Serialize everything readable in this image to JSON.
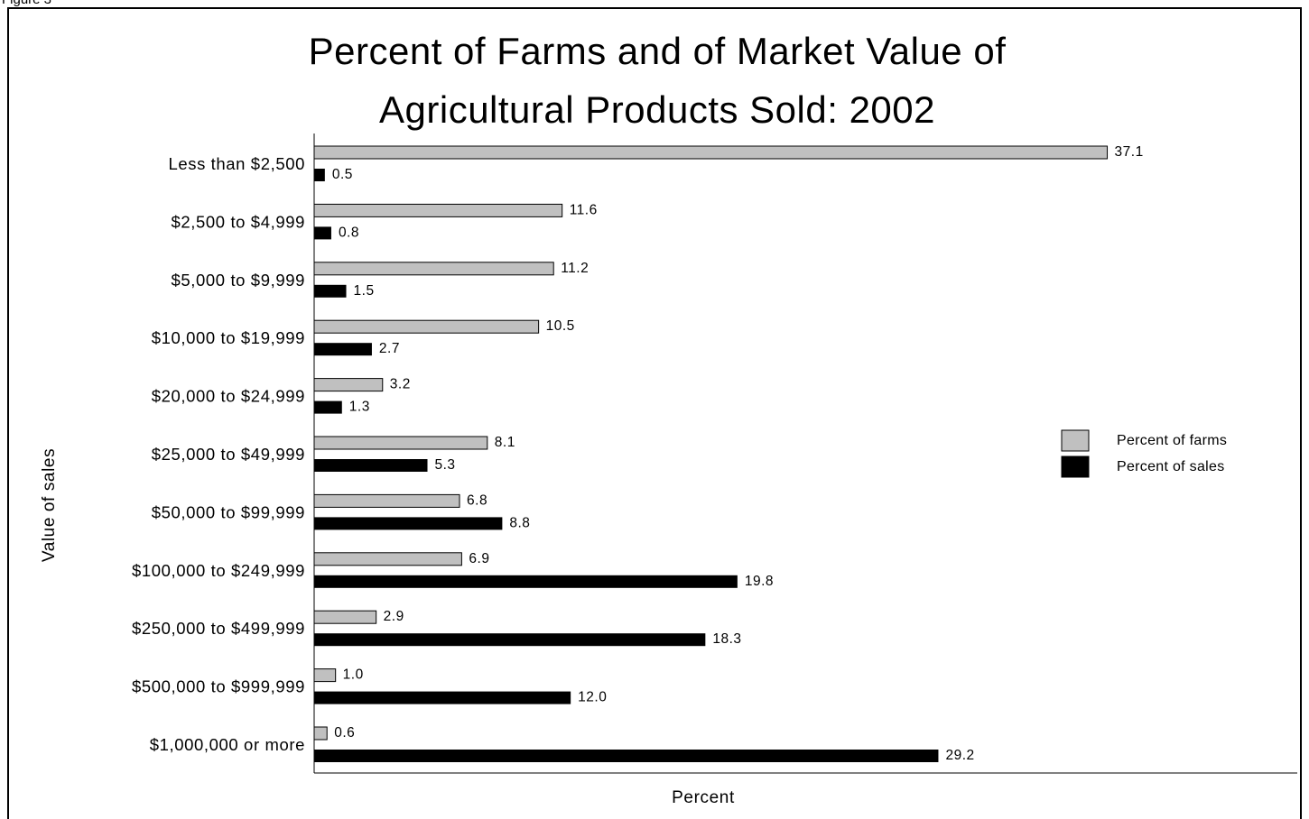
{
  "figure_caption": "Figure 3",
  "chart_data": {
    "type": "bar",
    "orientation": "horizontal",
    "title": "Percent of Farms and of Market Value of Agricultural Products Sold:  2002",
    "title_lines": [
      "Percent of Farms and of Market Value of",
      "Agricultural Products Sold:  2002"
    ],
    "xlabel": "Percent",
    "ylabel": "Value of sales",
    "xlim": [
      0,
      40
    ],
    "grid": false,
    "legend_position": "right",
    "categories": [
      "Less than $2,500",
      "$2,500 to $4,999",
      "$5,000 to $9,999",
      "$10,000 to $19,999",
      "$20,000 to $24,999",
      "$25,000 to $49,999",
      "$50,000 to $99,999",
      "$100,000 to $249,999",
      "$250,000 to $499,999",
      "$500,000 to $999,999",
      "$1,000,000 or more"
    ],
    "series": [
      {
        "name": "Percent of farms",
        "color": "#c0c0c0",
        "values": [
          37.1,
          11.6,
          11.2,
          10.5,
          3.2,
          8.1,
          6.8,
          6.9,
          2.9,
          1.0,
          0.6
        ],
        "labels": [
          "37.1",
          "11.6",
          "11.2",
          "10.5",
          "3.2",
          "8.1",
          "6.8",
          "6.9",
          "2.9",
          "1.0",
          "0.6"
        ]
      },
      {
        "name": "Percent of sales",
        "color": "#000000",
        "values": [
          0.5,
          0.8,
          1.5,
          2.7,
          1.3,
          5.3,
          8.8,
          19.8,
          18.3,
          12.0,
          29.2
        ],
        "labels": [
          "0.5",
          "0.8",
          "1.5",
          "2.7",
          "1.3",
          "5.3",
          "8.8",
          "19.8",
          "18.3",
          "12.0",
          "29.2"
        ]
      }
    ]
  }
}
